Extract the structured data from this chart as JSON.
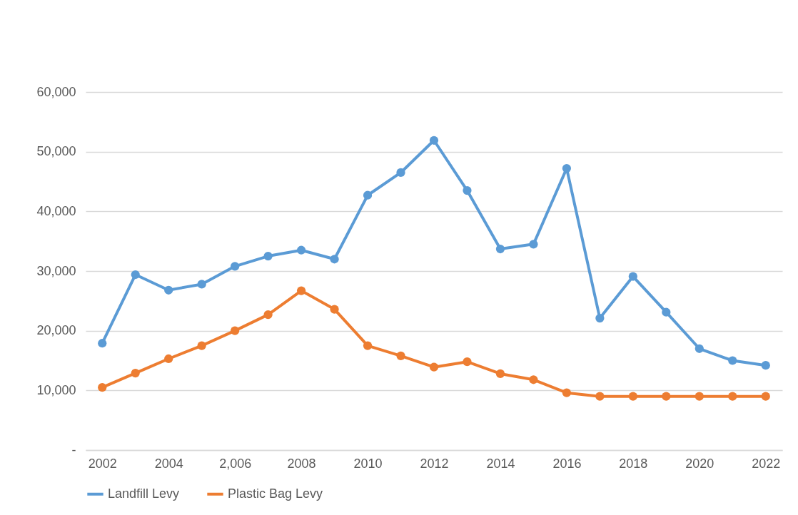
{
  "chart_data": {
    "type": "line",
    "categories": [
      "2002",
      null,
      "2004",
      null,
      "2,006",
      null,
      "2008",
      null,
      "2010",
      null,
      "2012",
      null,
      "2014",
      null,
      "2016",
      null,
      "2018",
      null,
      "2020",
      null,
      "2022"
    ],
    "series": [
      {
        "name": "Landfill Levy",
        "color": "#5b9bd5",
        "values": [
          17900,
          29400,
          26800,
          27800,
          30800,
          32500,
          33500,
          32000,
          42700,
          46500,
          51900,
          43500,
          33700,
          34500,
          47200,
          22100,
          29100,
          23100,
          17000,
          15000,
          14200
        ]
      },
      {
        "name": "Plastic Bag Levy",
        "color": "#ed7d31",
        "values": [
          10500,
          12900,
          15300,
          17500,
          20000,
          22700,
          26700,
          23600,
          17500,
          15800,
          13900,
          14800,
          12800,
          11800,
          9600,
          9000,
          9000,
          9000,
          9000,
          9000,
          9000
        ]
      }
    ],
    "ylim": [
      0,
      60000
    ],
    "yticks": [
      {
        "value": 0,
        "label": "-"
      },
      {
        "value": 10000,
        "label": "10,000"
      },
      {
        "value": 20000,
        "label": "20,000"
      },
      {
        "value": 30000,
        "label": "30,000"
      },
      {
        "value": 40000,
        "label": "40,000"
      },
      {
        "value": 50000,
        "label": "50,000"
      },
      {
        "value": 60000,
        "label": "60,000"
      }
    ],
    "grid": "y",
    "legend": "bottom",
    "marker": "circle",
    "line_style": "solid"
  }
}
